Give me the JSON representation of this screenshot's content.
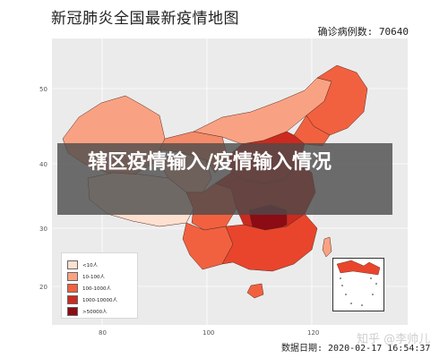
{
  "title": "新冠肺炎全国最新疫情地图",
  "confirmed_label": "确诊病例数: 70640",
  "date_label": "数据日期: 2020-02-17 16:54:37",
  "banner_text": "辖区疫情输入/疫情输入情况",
  "watermark": "知乎 @李帅儿",
  "axes": {
    "y_ticks": [
      "50",
      "40",
      "30",
      "20"
    ],
    "x_ticks": [
      "80",
      "100",
      "120"
    ]
  },
  "legend": [
    {
      "label": "<10人",
      "color": "#fde0d0"
    },
    {
      "label": "10-100人",
      "color": "#f9a283"
    },
    {
      "label": "100-1000人",
      "color": "#f1613f"
    },
    {
      "label": "1000-10000人",
      "color": "#cc2a1f"
    },
    {
      "label": ">50000人",
      "color": "#8c0b14"
    }
  ]
}
